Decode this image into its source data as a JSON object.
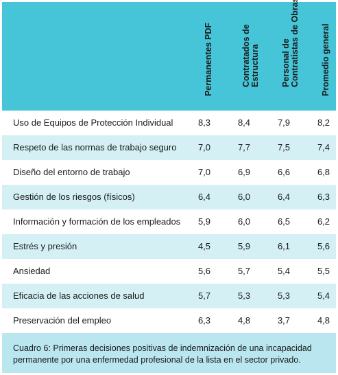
{
  "columns": [
    "Permanentes PDF",
    "Contratados de Estructura",
    "Personal de Contratistas de Obras",
    "Promedio general"
  ],
  "rows": [
    {
      "label": "Uso de Equipos de Protección Individual",
      "values": [
        "8,3",
        "8,4",
        "7,9",
        "8,2"
      ]
    },
    {
      "label": "Respeto de las normas de trabajo seguro",
      "values": [
        "7,0",
        "7,7",
        "7,5",
        "7,4"
      ]
    },
    {
      "label": "Diseño del entorno de trabajo",
      "values": [
        "7,0",
        "6,9",
        "6,6",
        "6,8"
      ]
    },
    {
      "label": "Gestión de los riesgos (físicos)",
      "values": [
        "6,4",
        "6,0",
        "6,4",
        "6,3"
      ]
    },
    {
      "label": "Información y formación de los empleados",
      "values": [
        "5,9",
        "6,0",
        "6,5",
        "6,2"
      ]
    },
    {
      "label": "Estrés y presión",
      "values": [
        "4,5",
        "5,9",
        "6,1",
        "5,6"
      ]
    },
    {
      "label": "Ansiedad",
      "values": [
        "5,6",
        "5,7",
        "5,4",
        "5,5"
      ]
    },
    {
      "label": "Eficacia de las acciones de salud",
      "values": [
        "5,7",
        "5,3",
        "5,3",
        "5,4"
      ]
    },
    {
      "label": "Preservación del empleo",
      "values": [
        "6,3",
        "4,8",
        "3,7",
        "4,8"
      ]
    }
  ],
  "caption": "Cuadro 6: Primeras decisiones positivas de indemnización de una incapacidad permanente por una enfermedad profesional de la lista en el sector privado.",
  "colors": {
    "header_bg": "#46c4d8",
    "row_shade": "#d4f0f5",
    "caption_bg": "#b9e6ef"
  }
}
